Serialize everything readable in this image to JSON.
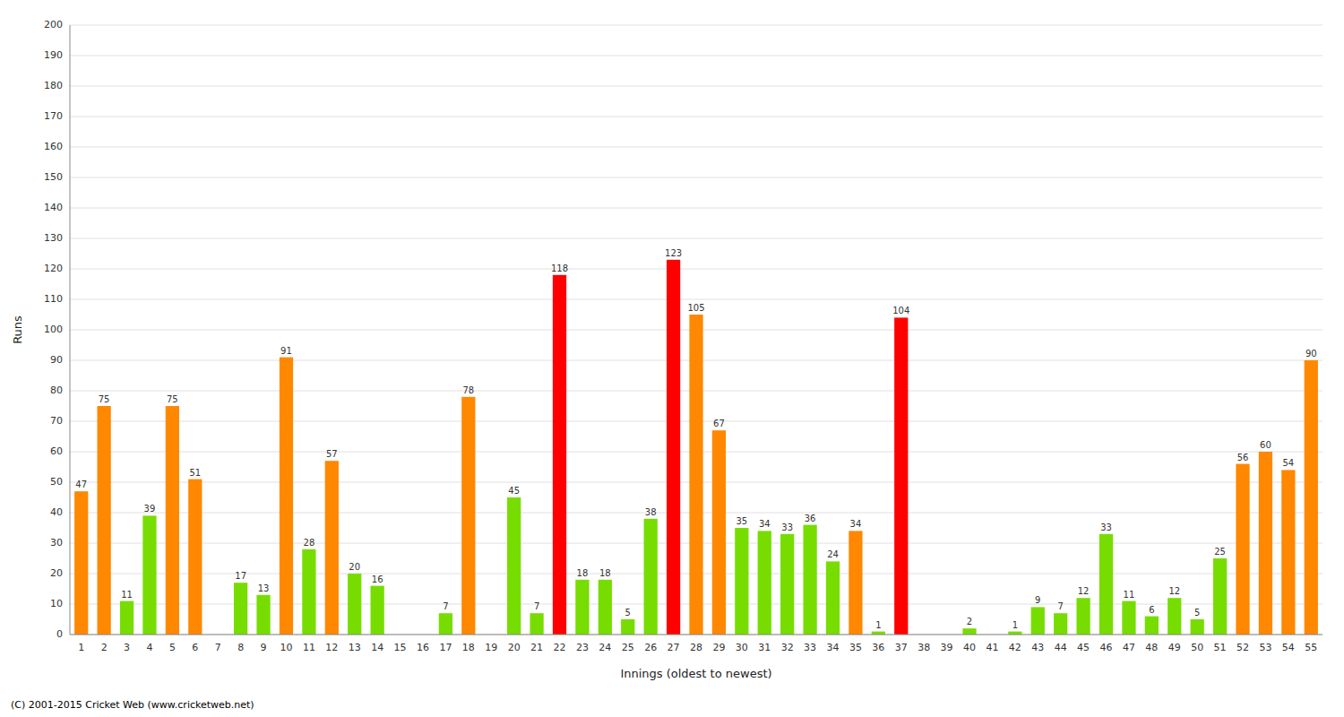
{
  "chart_data": {
    "type": "bar",
    "xlabel": "Innings (oldest to newest)",
    "ylabel": "Runs",
    "annotations": [
      "(C) 2001-2015 Cricket Web (www.cricketweb.net)"
    ],
    "categories": [
      "1",
      "2",
      "3",
      "4",
      "5",
      "6",
      "7",
      "8",
      "9",
      "10",
      "11",
      "12",
      "13",
      "14",
      "15",
      "16",
      "17",
      "18",
      "19",
      "20",
      "21",
      "22",
      "23",
      "24",
      "25",
      "26",
      "27",
      "28",
      "29",
      "30",
      "31",
      "32",
      "33",
      "34",
      "35",
      "36",
      "37",
      "38",
      "39",
      "40",
      "41",
      "42",
      "43",
      "44",
      "45",
      "46",
      "47",
      "48",
      "49",
      "50",
      "51",
      "52",
      "53",
      "54",
      "55"
    ],
    "values": [
      47,
      75,
      11,
      39,
      75,
      51,
      0,
      17,
      13,
      91,
      28,
      57,
      20,
      16,
      0,
      0,
      7,
      78,
      0,
      45,
      7,
      118,
      18,
      18,
      5,
      38,
      123,
      105,
      67,
      35,
      34,
      33,
      36,
      24,
      34,
      1,
      104,
      0,
      0,
      2,
      0,
      1,
      9,
      7,
      12,
      33,
      11,
      6,
      12,
      5,
      25,
      56,
      60,
      54,
      90
    ],
    "value_labels": [
      "47",
      "75",
      "11",
      "39",
      "75",
      "51",
      null,
      "17",
      "13",
      "91",
      "28",
      "57",
      "20",
      "16",
      null,
      null,
      "7",
      "78",
      null,
      "45",
      "7",
      "118",
      "18",
      "18",
      "5",
      "38",
      "123",
      "105",
      "67",
      "35",
      "34",
      "33",
      "36",
      "24",
      "34",
      "1",
      "104",
      null,
      null,
      "2",
      null,
      "1",
      "9",
      "7",
      "12",
      "33",
      "11",
      "6",
      "12",
      "5",
      "25",
      "56",
      "60",
      "54",
      "90"
    ],
    "colors": [
      "#FF8800",
      "#FF8800",
      "#77DD00",
      "#77DD00",
      "#FF8800",
      "#FF8800",
      "#77DD00",
      "#77DD00",
      "#77DD00",
      "#FF8800",
      "#77DD00",
      "#FF8800",
      "#77DD00",
      "#77DD00",
      "#77DD00",
      "#77DD00",
      "#77DD00",
      "#FF8800",
      "#77DD00",
      "#77DD00",
      "#77DD00",
      "#FF0000",
      "#77DD00",
      "#77DD00",
      "#77DD00",
      "#77DD00",
      "#FF0000",
      "#FF8800",
      "#FF8800",
      "#77DD00",
      "#77DD00",
      "#77DD00",
      "#77DD00",
      "#77DD00",
      "#FF8800",
      "#77DD00",
      "#FF0000",
      "#77DD00",
      "#77DD00",
      "#77DD00",
      "#77DD00",
      "#77DD00",
      "#77DD00",
      "#77DD00",
      "#77DD00",
      "#77DD00",
      "#77DD00",
      "#77DD00",
      "#77DD00",
      "#77DD00",
      "#77DD00",
      "#FF8800",
      "#FF8800",
      "#FF8800",
      "#FF8800"
    ],
    "ylim": [
      0,
      200
    ],
    "yticks": [
      0,
      10,
      20,
      30,
      40,
      50,
      60,
      70,
      80,
      90,
      100,
      110,
      120,
      130,
      140,
      150,
      160,
      170,
      180,
      190,
      200
    ],
    "grid": true,
    "data_labels": true
  }
}
